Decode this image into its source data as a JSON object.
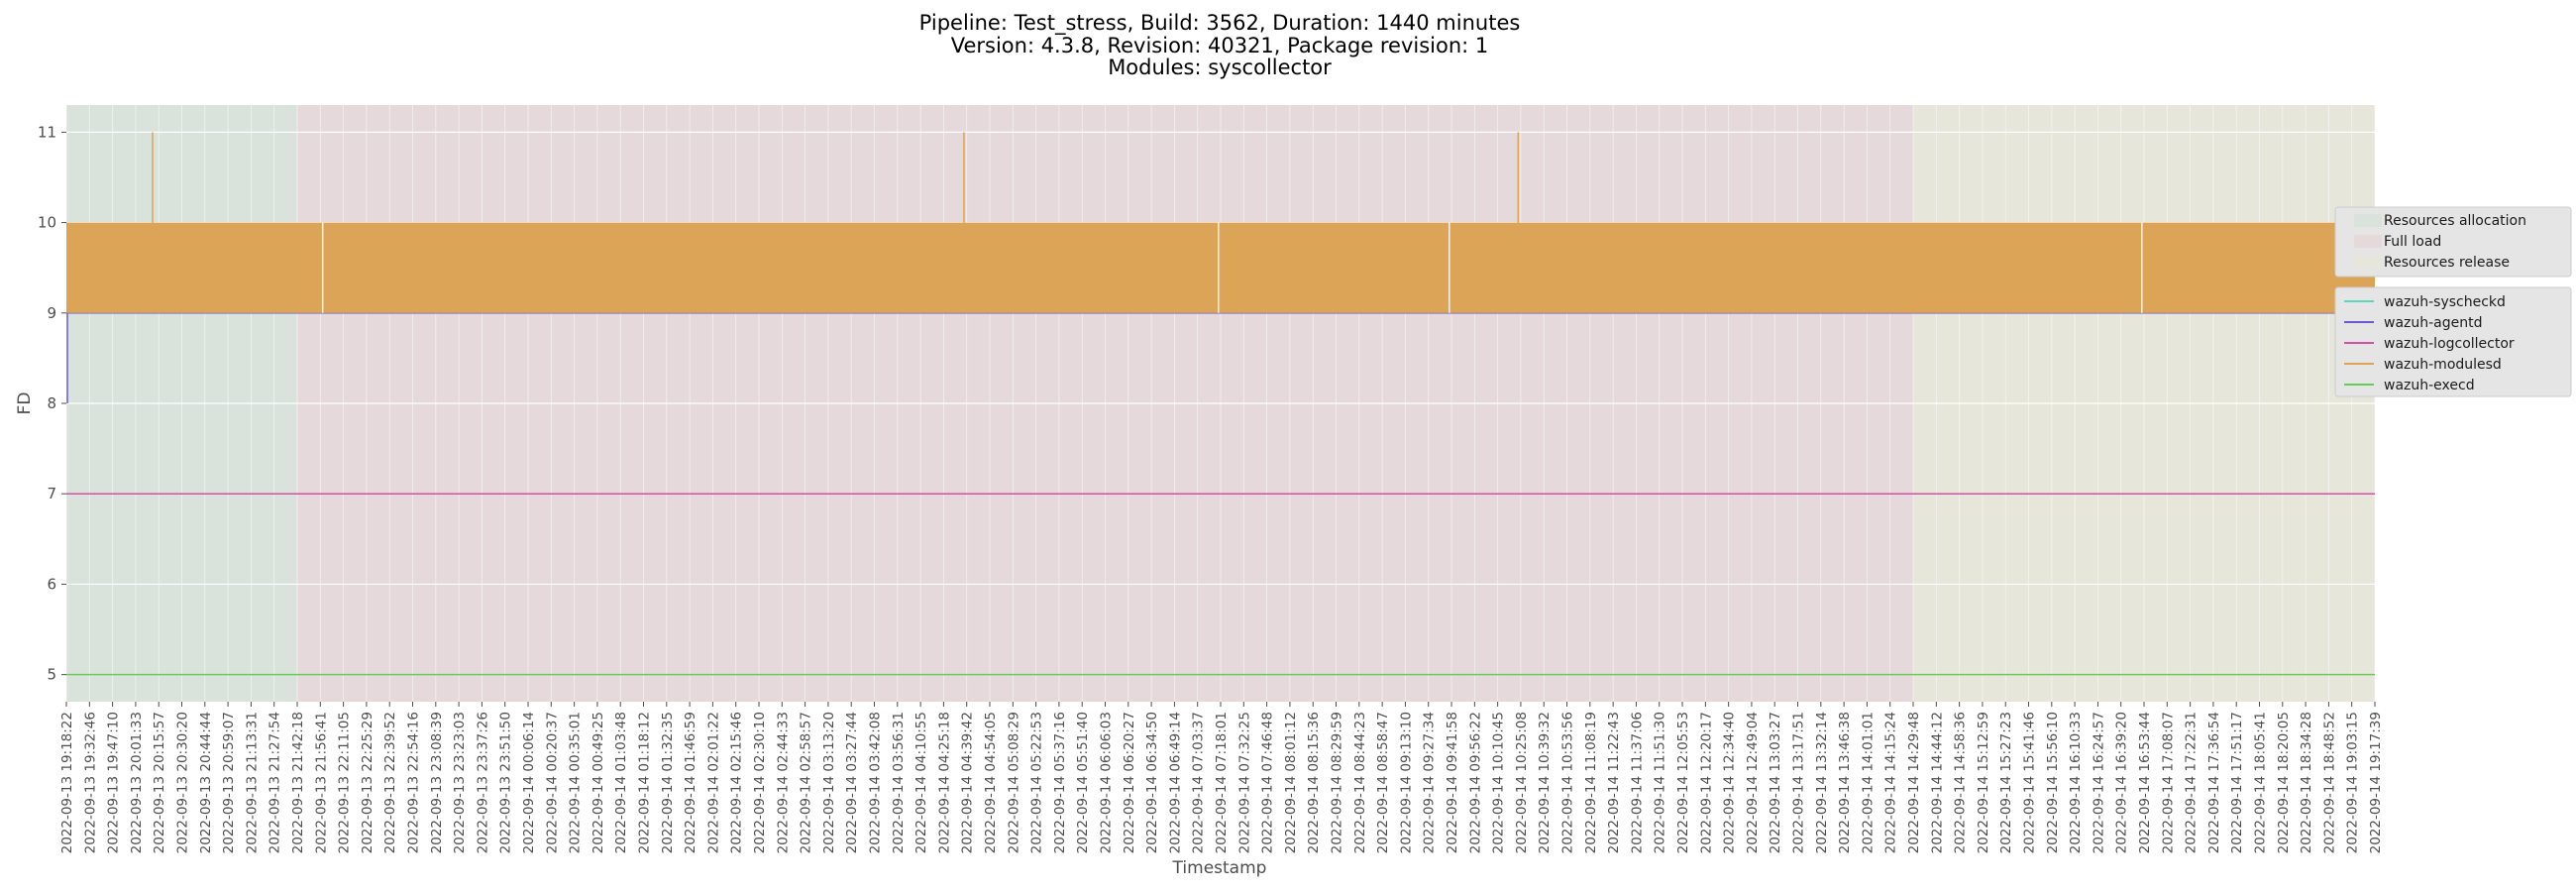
{
  "chart_data": {
    "type": "line",
    "title_lines": [
      "Pipeline: Test_stress, Build: 3562, Duration: 1440 minutes",
      "Version: 4.3.8, Revision: 40321, Package revision: 1",
      "Modules: syscollector"
    ],
    "xlabel": "Timestamp",
    "ylabel": "FD",
    "ylim": [
      4.7,
      11.3
    ],
    "yticks": [
      5,
      6,
      7,
      8,
      9,
      10,
      11
    ],
    "grid": true,
    "legend_placement": "right, outside plot",
    "xticks": [
      "2022-09-13 19:18:22",
      "2022-09-13 19:32:46",
      "2022-09-13 19:47:10",
      "2022-09-13 20:01:33",
      "2022-09-13 20:15:57",
      "2022-09-13 20:30:20",
      "2022-09-13 20:44:44",
      "2022-09-13 20:59:07",
      "2022-09-13 21:13:31",
      "2022-09-13 21:27:54",
      "2022-09-13 21:42:18",
      "2022-09-13 21:56:41",
      "2022-09-13 22:11:05",
      "2022-09-13 22:25:29",
      "2022-09-13 22:39:52",
      "2022-09-13 22:54:16",
      "2022-09-13 23:08:39",
      "2022-09-13 23:23:03",
      "2022-09-13 23:37:26",
      "2022-09-13 23:51:50",
      "2022-09-14 00:06:14",
      "2022-09-14 00:20:37",
      "2022-09-14 00:35:01",
      "2022-09-14 00:49:25",
      "2022-09-14 01:03:48",
      "2022-09-14 01:18:12",
      "2022-09-14 01:32:35",
      "2022-09-14 01:46:59",
      "2022-09-14 02:01:22",
      "2022-09-14 02:15:46",
      "2022-09-14 02:30:10",
      "2022-09-14 02:44:33",
      "2022-09-14 02:58:57",
      "2022-09-14 03:13:20",
      "2022-09-14 03:27:44",
      "2022-09-14 03:42:08",
      "2022-09-14 03:56:31",
      "2022-09-14 04:10:55",
      "2022-09-14 04:25:18",
      "2022-09-14 04:39:42",
      "2022-09-14 04:54:05",
      "2022-09-14 05:08:29",
      "2022-09-14 05:22:53",
      "2022-09-14 05:37:16",
      "2022-09-14 05:51:40",
      "2022-09-14 06:06:03",
      "2022-09-14 06:20:27",
      "2022-09-14 06:34:50",
      "2022-09-14 06:49:14",
      "2022-09-14 07:03:37",
      "2022-09-14 07:18:01",
      "2022-09-14 07:32:25",
      "2022-09-14 07:46:48",
      "2022-09-14 08:01:12",
      "2022-09-14 08:15:36",
      "2022-09-14 08:29:59",
      "2022-09-14 08:44:23",
      "2022-09-14 08:58:47",
      "2022-09-14 09:13:10",
      "2022-09-14 09:27:34",
      "2022-09-14 09:41:58",
      "2022-09-14 09:56:22",
      "2022-09-14 10:10:45",
      "2022-09-14 10:25:08",
      "2022-09-14 10:39:32",
      "2022-09-14 10:53:56",
      "2022-09-14 11:08:19",
      "2022-09-14 11:22:43",
      "2022-09-14 11:37:06",
      "2022-09-14 11:51:30",
      "2022-09-14 12:05:53",
      "2022-09-14 12:20:17",
      "2022-09-14 12:34:40",
      "2022-09-14 12:49:04",
      "2022-09-14 13:03:27",
      "2022-09-14 13:17:51",
      "2022-09-14 13:32:14",
      "2022-09-14 13:46:38",
      "2022-09-14 14:01:01",
      "2022-09-14 14:15:24",
      "2022-09-14 14:29:48",
      "2022-09-14 14:44:12",
      "2022-09-14 14:58:36",
      "2022-09-14 15:12:59",
      "2022-09-14 15:27:23",
      "2022-09-14 15:41:46",
      "2022-09-14 15:56:10",
      "2022-09-14 16:10:33",
      "2022-09-14 16:24:57",
      "2022-09-14 16:39:20",
      "2022-09-14 16:53:44",
      "2022-09-14 17:08:07",
      "2022-09-14 17:22:31",
      "2022-09-14 17:36:54",
      "2022-09-14 17:51:17",
      "2022-09-14 18:05:41",
      "2022-09-14 18:20:05",
      "2022-09-14 18:34:28",
      "2022-09-14 18:48:52",
      "2022-09-14 19:03:15",
      "2022-09-14 19:17:39"
    ],
    "phases": [
      {
        "name": "Resources allocation",
        "start": "2022-09-13 19:18:22",
        "end": "2022-09-13 21:42:18",
        "color": "#d9e3dc"
      },
      {
        "name": "Full load",
        "start": "2022-09-13 21:42:18",
        "end": "2022-09-14 14:29:48",
        "color": "#e5d9db"
      },
      {
        "name": "Resources release",
        "start": "2022-09-14 14:29:48",
        "end": "2022-09-14 19:17:39",
        "color": "#e6e6da"
      }
    ],
    "series": [
      {
        "name": "wazuh-syscheckd",
        "color": "#5fd3bc",
        "pattern": "constant",
        "values": [
          9
        ]
      },
      {
        "name": "wazuh-agentd",
        "color": "#6a5acd",
        "pattern": "constant",
        "values": [
          9
        ],
        "initial_values": [
          8,
          9
        ]
      },
      {
        "name": "wazuh-logcollector",
        "color": "#d64fa6",
        "pattern": "constant",
        "values": [
          7
        ]
      },
      {
        "name": "wazuh-modulesd",
        "color": "#dba457",
        "pattern": "oscillating",
        "values": [
          9,
          10
        ],
        "spikes": [
          {
            "x": "2022-09-13 20:12:06",
            "y": 11
          },
          {
            "x": "2022-09-14 04:37:57",
            "y": 11
          },
          {
            "x": "2022-09-14 10:23:31",
            "y": 11
          }
        ],
        "dips": [
          {
            "x": "2022-09-13 21:58:09",
            "y": 9
          },
          {
            "x": "2022-09-14 07:16:38",
            "y": 9
          },
          {
            "x": "2022-09-14 09:40:35",
            "y": 9
          },
          {
            "x": "2022-09-14 16:52:21",
            "y": 9
          }
        ]
      },
      {
        "name": "wazuh-execd",
        "color": "#66cc55",
        "pattern": "constant",
        "values": [
          5
        ]
      }
    ]
  }
}
